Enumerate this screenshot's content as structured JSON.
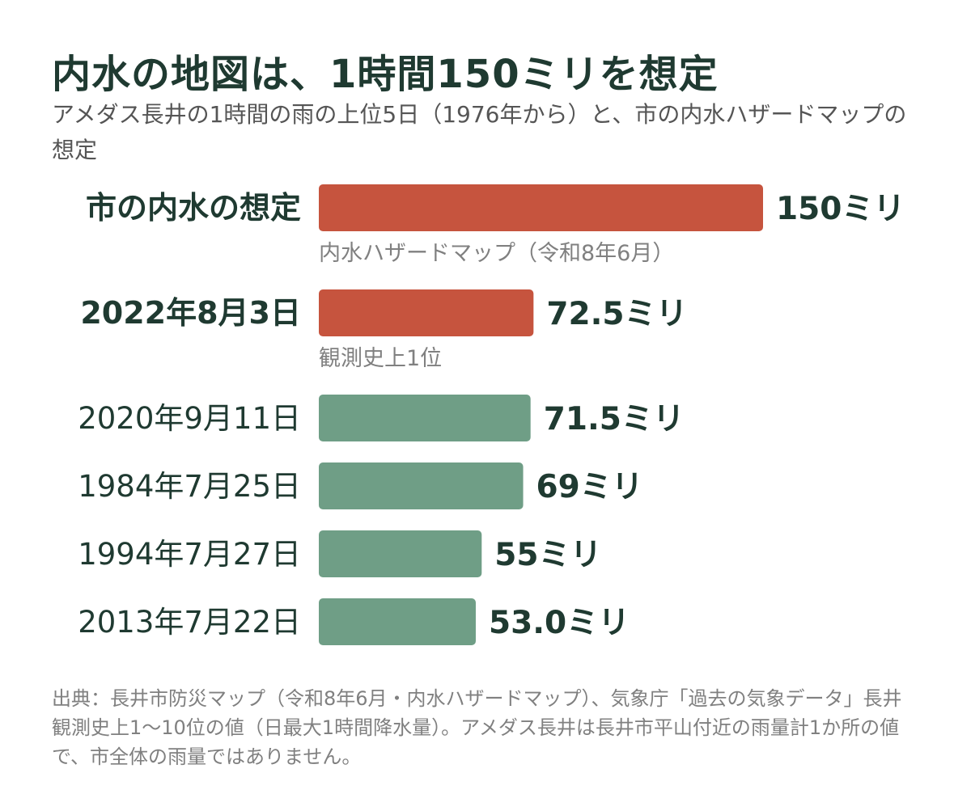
{
  "title": "内水の地図は、1時間150ミリを想定",
  "subtitle": "アメダス長井の1時間の雨の上位5日（1976年から）と、市の内水ハザードマップの想定",
  "source": "出典：長井市防災マップ（令和8年6月・内水ハザードマップ）、気象庁「過去の気象データ」長井 観測史上1～10位の値（日最大1時間降水量）。アメダス長井は長井市平山付近の雨量計1か所の値で、市全体の雨量ではありません。",
  "colors": {
    "highlight": "#c6543e",
    "normal": "#6f9e86",
    "text": "#1f3a31",
    "note": "#808080"
  },
  "chart_data": {
    "type": "bar",
    "orientation": "horizontal",
    "unit": "ミリ",
    "categories": [
      "市の内水の想定",
      "2022年8月3日",
      "2020年9月11日",
      "1984年7月25日",
      "1994年7月27日",
      "2013年7月22日"
    ],
    "values": [
      150,
      72.5,
      71.5,
      69,
      55,
      53.0
    ],
    "value_labels": [
      "150ミリ",
      "72.5ミリ",
      "71.5ミリ",
      "69ミリ",
      "55ミリ",
      "53.0ミリ"
    ],
    "notes": [
      "内水ハザードマップ（令和8年6月）",
      "観測史上1位",
      "",
      "",
      "",
      ""
    ],
    "highlight": [
      true,
      true,
      false,
      false,
      false,
      false
    ],
    "xlim": [
      0,
      150
    ],
    "grid": false,
    "legend": "none"
  }
}
